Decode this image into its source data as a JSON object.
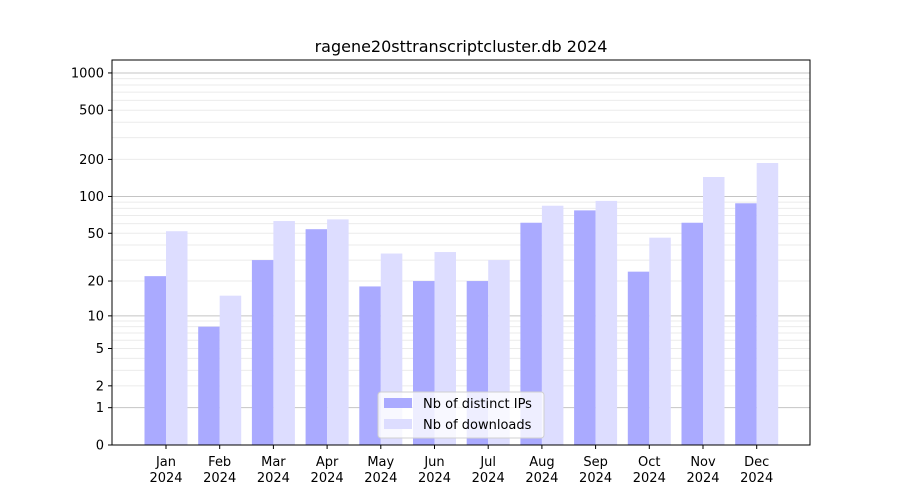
{
  "chart_data": {
    "type": "bar",
    "title": "ragene20sttranscriptcluster.db 2024",
    "xlabel": "",
    "ylabel": "",
    "yscale": "log(1+x)",
    "ylim": [
      0,
      1200
    ],
    "yticks": [
      0,
      1,
      2,
      5,
      10,
      20,
      50,
      100,
      200,
      500,
      1000
    ],
    "grid": true,
    "legend": "bottom-center",
    "categories": [
      "Jan\n2024",
      "Feb\n2024",
      "Mar\n2024",
      "Apr\n2024",
      "May\n2024",
      "Jun\n2024",
      "Jul\n2024",
      "Aug\n2024",
      "Sep\n2024",
      "Oct\n2024",
      "Nov\n2024",
      "Dec\n2024"
    ],
    "series": [
      {
        "name": "Nb of distinct IPs",
        "color": "#aaaaff",
        "values": [
          22,
          8,
          30,
          54,
          18,
          20,
          20,
          61,
          77,
          24,
          61,
          88
        ]
      },
      {
        "name": "Nb of downloads",
        "color": "#ddddff",
        "values": [
          52,
          15,
          63,
          65,
          34,
          35,
          30,
          84,
          92,
          46,
          144,
          187
        ]
      }
    ]
  }
}
